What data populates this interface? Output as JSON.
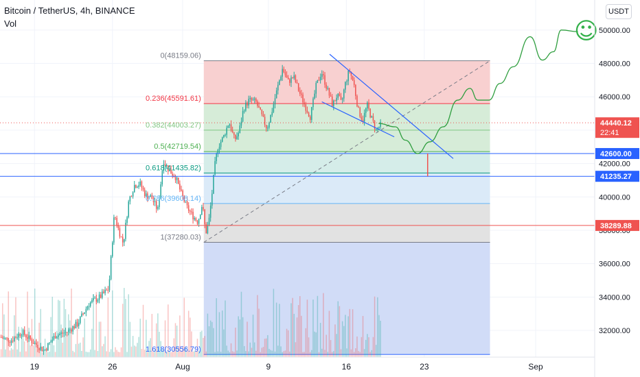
{
  "header": {
    "title": "Bitcoin / TetherUS, 4h, BINANCE",
    "volume_label": "Vol",
    "currency": "USDT"
  },
  "colors": {
    "up": "#26a69a",
    "down": "#ef5350",
    "fib_red_zone": "#f8d0d0",
    "fib_green_zone": "#d6ecd8",
    "fib_teal_zone": "#d5ede9",
    "fib_lightblue_zone": "#dbeaf8",
    "fib_gray_zone": "#e2e2e2",
    "fib_blue_zone": "#d1dcf7",
    "support_blue": "#2962ff",
    "support_red": "#ef5350",
    "projection": "#2e9e3e",
    "smiley": "#33b04a"
  },
  "chart_data": {
    "type": "candlestick",
    "symbol": "Bitcoin / TetherUS",
    "interval": "4h",
    "exchange": "BINANCE",
    "ylim": [
      30400,
      51800
    ],
    "y_ticks": [
      "32000.00",
      "34000.00",
      "36000.00",
      "38000.00",
      "40000.00",
      "42000.00",
      "44000.00",
      "46000.00",
      "48000.00",
      "50000.00"
    ],
    "y_tick_values": [
      32000,
      34000,
      36000,
      38000,
      40000,
      42000,
      44000,
      46000,
      48000,
      50000
    ],
    "x_ticks": [
      "19",
      "26",
      "Aug",
      "9",
      "16",
      "23",
      "Sep"
    ],
    "x_tick_values": [
      0,
      7,
      13.3,
      21,
      28,
      35,
      45
    ],
    "x_range_days": [
      -3.1,
      50.3
    ],
    "price_anchors": [
      [
        -3.0,
        31600
      ],
      [
        -2.0,
        31400
      ],
      [
        -1.0,
        31900
      ],
      [
        0.0,
        31300
      ],
      [
        1.0,
        30800
      ],
      [
        2.0,
        31700
      ],
      [
        3.0,
        31900
      ],
      [
        4.0,
        32400
      ],
      [
        5.0,
        33600
      ],
      [
        6.0,
        34000
      ],
      [
        6.8,
        34500
      ],
      [
        7.3,
        39000
      ],
      [
        7.6,
        38200
      ],
      [
        8.1,
        37200
      ],
      [
        8.6,
        39800
      ],
      [
        9.1,
        40700
      ],
      [
        9.6,
        40800
      ],
      [
        10.1,
        40100
      ],
      [
        10.6,
        40000
      ],
      [
        11.2,
        39200
      ],
      [
        11.7,
        42200
      ],
      [
        12.2,
        41600
      ],
      [
        12.8,
        41200
      ],
      [
        13.3,
        40200
      ],
      [
        13.8,
        39400
      ],
      [
        14.3,
        38900
      ],
      [
        14.8,
        38500
      ],
      [
        15.2,
        39600
      ],
      [
        15.5,
        37800
      ],
      [
        15.8,
        38600
      ],
      [
        16.1,
        40400
      ],
      [
        16.3,
        41800
      ],
      [
        16.6,
        43000
      ],
      [
        17.1,
        43600
      ],
      [
        17.6,
        44500
      ],
      [
        18.1,
        43400
      ],
      [
        18.5,
        43900
      ],
      [
        18.9,
        45300
      ],
      [
        19.4,
        45800
      ],
      [
        20.0,
        45700
      ],
      [
        20.5,
        44900
      ],
      [
        21.0,
        44100
      ],
      [
        21.4,
        45000
      ],
      [
        21.9,
        46400
      ],
      [
        22.4,
        47700
      ],
      [
        22.9,
        46900
      ],
      [
        23.4,
        47200
      ],
      [
        23.9,
        46300
      ],
      [
        24.4,
        45500
      ],
      [
        24.9,
        44800
      ],
      [
        25.4,
        46600
      ],
      [
        25.9,
        47500
      ],
      [
        26.4,
        46500
      ],
      [
        26.9,
        45500
      ],
      [
        27.3,
        46100
      ],
      [
        27.7,
        45600
      ],
      [
        28.0,
        46700
      ],
      [
        28.4,
        47600
      ],
      [
        28.8,
        46800
      ],
      [
        29.2,
        45200
      ],
      [
        29.6,
        44600
      ],
      [
        30.0,
        45500
      ],
      [
        30.4,
        44700
      ],
      [
        30.8,
        44000
      ],
      [
        31.2,
        44300
      ]
    ],
    "volume_range_per_bar": [
      300,
      4200
    ],
    "horizontal_lines": [
      {
        "value": 44440.12,
        "label": "44440.12",
        "sublabel": "22:41",
        "style": "dotted",
        "color": "#ef5350"
      },
      {
        "value": 42600,
        "label": "42600.00",
        "style": "solid",
        "color": "#2962ff"
      },
      {
        "value": 41235.27,
        "label": "41235.27",
        "style": "solid",
        "color": "#2962ff"
      },
      {
        "value": 38289.88,
        "label": "38289.88",
        "style": "solid",
        "color": "#ef5350"
      }
    ],
    "fib_retracement": {
      "x_start": 15.2,
      "x_end": 40.9,
      "levels": [
        {
          "ratio_label": "0(48159.06)",
          "value": 48159.06,
          "color": "#787b86"
        },
        {
          "ratio_label": "0.236(45591.61)",
          "value": 45591.61,
          "color": "#f23645"
        },
        {
          "ratio_label": "0.382(44003.27)",
          "value": 44003.27,
          "color": "#81c784"
        },
        {
          "ratio_label": "0.5(42719.54)",
          "value": 42719.54,
          "color": "#4caf50"
        },
        {
          "ratio_label": "0.618(41435.82)",
          "value": 41435.82,
          "color": "#089981"
        },
        {
          "ratio_label": "0.786(39608.14)",
          "value": 39608.14,
          "color": "#64b5f6"
        },
        {
          "ratio_label": "1(37280.03)",
          "value": 37280.03,
          "color": "#787b86"
        },
        {
          "ratio_label": "1.618(30556.79)",
          "value": 30556.79,
          "color": "#2962ff"
        }
      ],
      "trend_line": [
        [
          15.2,
          37280.03
        ],
        [
          40.9,
          48159.06
        ]
      ]
    },
    "trend_channel": [
      [
        [
          26.5,
          48550
        ],
        [
          37.6,
          42300
        ]
      ],
      [
        [
          25.8,
          45700
        ],
        [
          32.3,
          43600
        ]
      ]
    ],
    "spike": {
      "x": 35.3,
      "from": 42600,
      "to": 41235.27
    },
    "projection_path": [
      [
        30.9,
        44400
      ],
      [
        32.4,
        44200
      ],
      [
        33.3,
        43400
      ],
      [
        34.4,
        42600
      ],
      [
        35.5,
        43300
      ],
      [
        36.7,
        44200
      ],
      [
        38.0,
        45800
      ],
      [
        39.1,
        46500
      ],
      [
        39.8,
        45800
      ],
      [
        40.8,
        45800
      ],
      [
        41.8,
        46800
      ],
      [
        43.0,
        47800
      ],
      [
        44.5,
        49600
      ],
      [
        45.6,
        48200
      ],
      [
        46.6,
        48700
      ],
      [
        47.3,
        50000
      ],
      [
        48.8,
        49900
      ]
    ],
    "annotation_emoji": "☺"
  }
}
